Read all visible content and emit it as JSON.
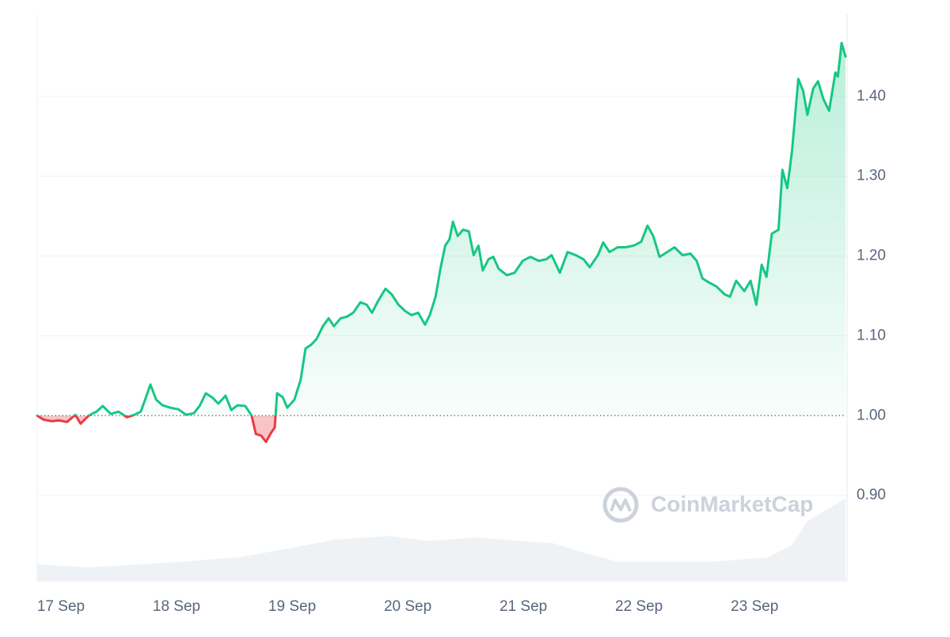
{
  "chart_data": {
    "type": "line",
    "watermark": "CoinMarketCap",
    "baseline": 1,
    "up_color": "#16c784",
    "down_color": "#ea3943",
    "volume_color": "#eff2f5",
    "grid": true,
    "xlim": [
      -4.6,
      163.2
    ],
    "xticks": [
      {
        "value": 0,
        "label": "17 Sep"
      },
      {
        "value": 24,
        "label": "18 Sep"
      },
      {
        "value": 48,
        "label": "19 Sep"
      },
      {
        "value": 72,
        "label": "20 Sep"
      },
      {
        "value": 96,
        "label": "21 Sep"
      },
      {
        "value": 120,
        "label": "22 Sep"
      },
      {
        "value": 144,
        "label": "23 Sep"
      }
    ],
    "ylim": [
      0.792,
      1.503
    ],
    "yticks": [
      {
        "value": 0.9,
        "label": "0.90"
      },
      {
        "value": 1.0,
        "label": "1.00"
      },
      {
        "value": 1.1,
        "label": "1.10"
      },
      {
        "value": 1.2,
        "label": "1.20"
      },
      {
        "value": 1.3,
        "label": "1.30"
      },
      {
        "value": 1.4,
        "label": "1.40"
      }
    ],
    "x": [
      -4.6,
      -3.3,
      -1.6,
      0,
      1.6,
      3.3,
      4.4,
      6.1,
      7.7,
      9.0,
      10.7,
      12.3,
      14.0,
      15.6,
      16.9,
      17.8,
      18.9,
      20.1,
      21.4,
      23.0,
      24.7,
      26.3,
      27.9,
      29.1,
      30.4,
      31.7,
      33.0,
      34.5,
      35.7,
      37.0,
      38.6,
      39.9,
      40.8,
      41.9,
      42.9,
      43.9,
      44.7,
      45.2,
      46.4,
      47.3,
      48.8,
      50.1,
      51.1,
      52.3,
      53.4,
      54.7,
      55.9,
      57.0,
      58.4,
      59.7,
      61.0,
      62.5,
      63.8,
      64.9,
      66.2,
      67.7,
      69.0,
      70.4,
      71.8,
      73.1,
      74.5,
      75.9,
      76.9,
      78.1,
      79.1,
      80.1,
      81.0,
      81.7,
      82.7,
      83.8,
      85.0,
      86.0,
      87.0,
      87.9,
      89.1,
      90.1,
      91.2,
      92.9,
      94.5,
      96.2,
      97.8,
      99.5,
      101.1,
      102.2,
      103.9,
      105.5,
      107.2,
      108.8,
      110.1,
      111.8,
      112.9,
      114.2,
      115.9,
      117.5,
      119.2,
      120.8,
      122.1,
      123.3,
      124.6,
      126.2,
      127.7,
      129.4,
      131.0,
      132.3,
      133.5,
      134.8,
      136.4,
      138.1,
      139.2,
      140.5,
      142.2,
      143.5,
      144.7,
      145.8,
      146.8,
      147.9,
      149.3,
      150.1,
      151.1,
      152.1,
      153.4,
      154.4,
      155.3,
      156.5,
      157.5,
      158.6,
      159.8,
      161.1,
      161.6,
      162.4,
      163.2
    ],
    "values": [
      1.0,
      0.995,
      0.993,
      0.994,
      0.992,
      1.001,
      0.99,
      1.0,
      1.005,
      1.012,
      1.002,
      1.005,
      0.998,
      1.001,
      1.005,
      1.02,
      1.039,
      1.02,
      1.013,
      1.01,
      1.008,
      1.001,
      1.003,
      1.012,
      1.028,
      1.023,
      1.015,
      1.025,
      1.007,
      1.013,
      1.012,
      1.0,
      0.977,
      0.975,
      0.967,
      0.978,
      0.985,
      1.028,
      1.023,
      1.01,
      1.02,
      1.045,
      1.084,
      1.089,
      1.096,
      1.112,
      1.122,
      1.112,
      1.122,
      1.124,
      1.129,
      1.142,
      1.139,
      1.129,
      1.144,
      1.159,
      1.152,
      1.139,
      1.131,
      1.126,
      1.129,
      1.114,
      1.126,
      1.149,
      1.184,
      1.213,
      1.221,
      1.243,
      1.225,
      1.233,
      1.231,
      1.201,
      1.213,
      1.182,
      1.196,
      1.199,
      1.184,
      1.176,
      1.179,
      1.194,
      1.199,
      1.194,
      1.196,
      1.201,
      1.179,
      1.205,
      1.201,
      1.196,
      1.186,
      1.201,
      1.217,
      1.205,
      1.211,
      1.211,
      1.213,
      1.218,
      1.238,
      1.225,
      1.199,
      1.205,
      1.211,
      1.201,
      1.203,
      1.194,
      1.172,
      1.167,
      1.162,
      1.152,
      1.149,
      1.169,
      1.156,
      1.169,
      1.139,
      1.189,
      1.174,
      1.228,
      1.233,
      1.308,
      1.285,
      1.332,
      1.422,
      1.407,
      1.377,
      1.41,
      1.419,
      1.397,
      1.382,
      1.43,
      1.425,
      1.467,
      1.45
    ],
    "volume": {
      "x": [
        -4.6,
        5.8,
        20.5,
        37.0,
        46.8,
        56.7,
        68.2,
        76.4,
        86.3,
        102.7,
        109.3,
        115.9,
        135.6,
        147.1,
        152.1,
        155.3,
        163.2
      ],
      "values": [
        21,
        17,
        22,
        29,
        39,
        50,
        55,
        49,
        53,
        46,
        34,
        24,
        24,
        29,
        44,
        73,
        100
      ]
    }
  }
}
